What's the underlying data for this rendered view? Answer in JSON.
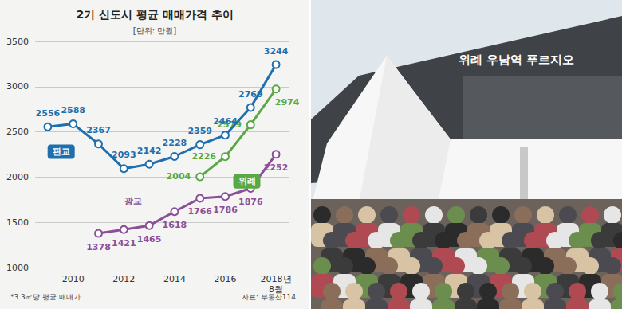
{
  "chart_data": {
    "type": "line",
    "title": "2기 신도시 평균 매매가격 추이",
    "subtitle": "[단위: 만원]",
    "annotations": [
      "*3.3㎡당 평균 매매가",
      "자료: 부동산114"
    ],
    "categories": [
      null,
      "2010",
      null,
      "2012",
      null,
      "2014",
      null,
      "2016",
      null,
      "2018년\n8월"
    ],
    "series": [
      {
        "name": "판교",
        "color": "#1f6fae",
        "values": [
          2556,
          2588,
          2367,
          2093,
          2142,
          2228,
          2359,
          2464,
          2769,
          3244
        ]
      },
      {
        "name": "위례",
        "color": "#5aa845",
        "values": [
          null,
          null,
          null,
          null,
          null,
          null,
          2004,
          2226,
          2579,
          2974
        ]
      },
      {
        "name": "광교",
        "color": "#8b4e98",
        "values": [
          null,
          null,
          1378,
          1421,
          1465,
          1618,
          1766,
          1786,
          1876,
          2252
        ]
      }
    ],
    "ylim": [
      1000,
      3500
    ],
    "yticks": [
      1000,
      1500,
      2000,
      2500,
      3000,
      3500
    ],
    "grid": true,
    "data_labels": true,
    "marker": "circle"
  },
  "photo": {
    "sign": "위례 우남역 푸르지오"
  }
}
